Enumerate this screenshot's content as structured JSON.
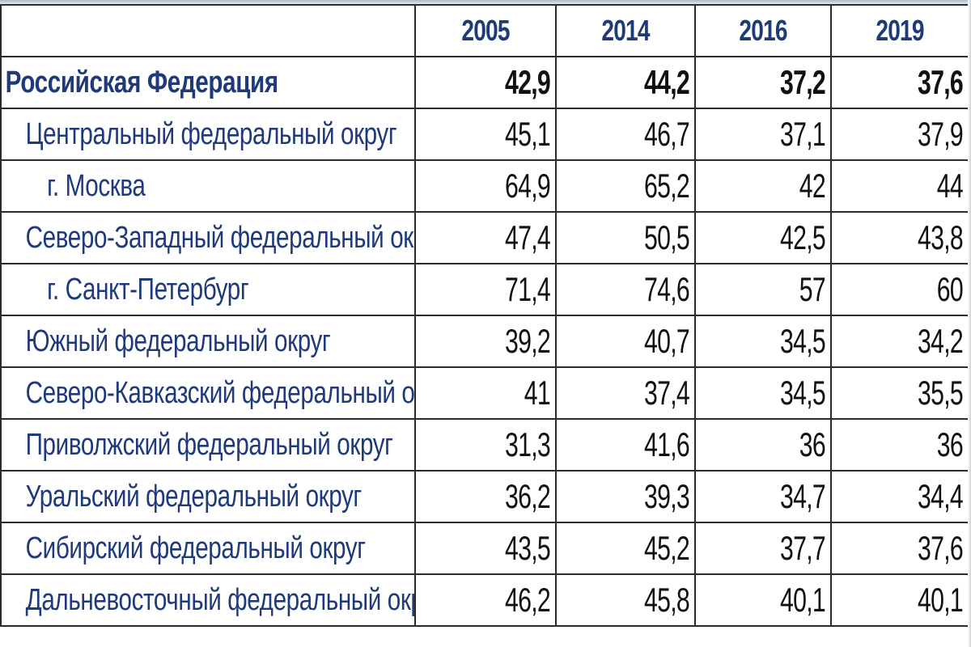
{
  "chart_data": {
    "type": "table",
    "columns": [
      "",
      "2005",
      "2014",
      "2016",
      "2019"
    ],
    "rows": [
      {
        "name": "Российская Федерация",
        "level": 0,
        "values": [
          "42,9",
          "44,2",
          "37,2",
          "37,6"
        ]
      },
      {
        "name": "Центральный федеральный округ",
        "level": 1,
        "values": [
          "45,1",
          "46,7",
          "37,1",
          "37,9"
        ]
      },
      {
        "name": "г. Москва",
        "level": 2,
        "values": [
          "64,9",
          "65,2",
          "42",
          "44"
        ]
      },
      {
        "name": "Северо-Западный федеральный округ",
        "level": 1,
        "values": [
          "47,4",
          "50,5",
          "42,5",
          "43,8"
        ]
      },
      {
        "name": "г. Санкт-Петербург",
        "level": 2,
        "values": [
          "71,4",
          "74,6",
          "57",
          "60"
        ]
      },
      {
        "name": "Южный федеральный округ",
        "level": 1,
        "values": [
          "39,2",
          "40,7",
          "34,5",
          "34,2"
        ]
      },
      {
        "name": "Северо-Кавказский федеральный округ",
        "level": 1,
        "values": [
          "41",
          "37,4",
          "34,5",
          "35,5"
        ]
      },
      {
        "name": "Приволжский федеральный округ",
        "level": 1,
        "values": [
          "31,3",
          "41,6",
          "36",
          "36"
        ]
      },
      {
        "name": "Уральский федеральный округ",
        "level": 1,
        "values": [
          "36,2",
          "39,3",
          "34,7",
          "34,4"
        ]
      },
      {
        "name": "Сибирский федеральный округ",
        "level": 1,
        "values": [
          "43,5",
          "45,2",
          "37,7",
          "37,6"
        ]
      },
      {
        "name": "Дальневосточный федеральный округ",
        "level": 1,
        "values": [
          "46,2",
          "45,8",
          "40,1",
          "40,1"
        ]
      }
    ]
  },
  "colors": {
    "label_text": "#1f3a78",
    "header_text": "#1f3a78",
    "value_text": "#111111",
    "grid": "#2b2b2b"
  }
}
